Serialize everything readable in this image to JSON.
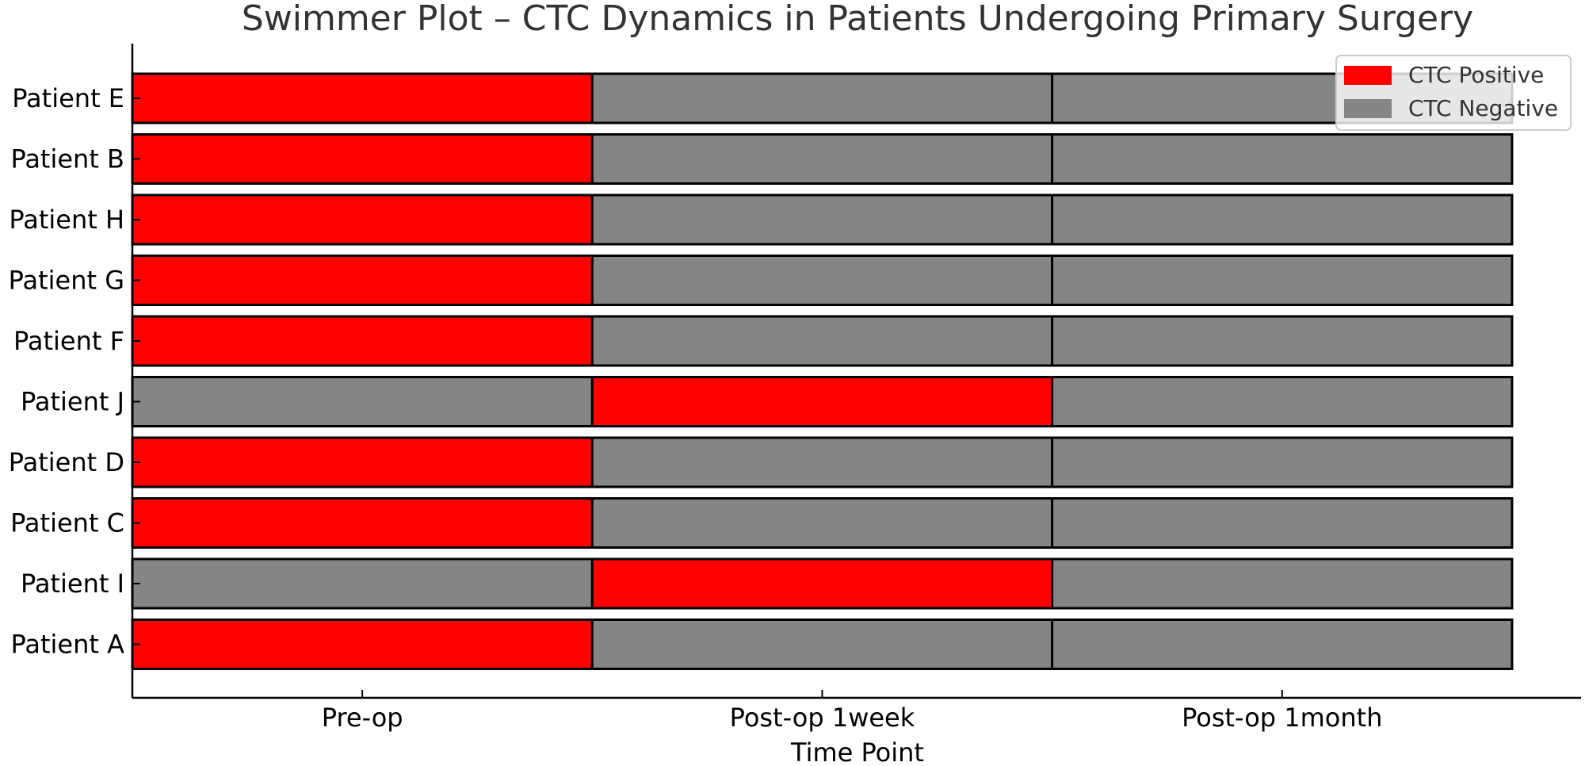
{
  "chart_data": {
    "type": "bar",
    "subtype": "swimmer",
    "title": "Swimmer Plot – CTC Dynamics in Patients Undergoing Primary Surgery",
    "xlabel": "Time Point",
    "ylabel": "",
    "x_categories": [
      "Pre-op",
      "Post-op 1week",
      "Post-op 1month"
    ],
    "xlim": [
      -0.5,
      2.65
    ],
    "patients": [
      {
        "name": "Patient E",
        "status": [
          "CTC Positive",
          "CTC Negative",
          "CTC Negative"
        ]
      },
      {
        "name": "Patient B",
        "status": [
          "CTC Positive",
          "CTC Negative",
          "CTC Negative"
        ]
      },
      {
        "name": "Patient H",
        "status": [
          "CTC Positive",
          "CTC Negative",
          "CTC Negative"
        ]
      },
      {
        "name": "Patient G",
        "status": [
          "CTC Positive",
          "CTC Negative",
          "CTC Negative"
        ]
      },
      {
        "name": "Patient F",
        "status": [
          "CTC Positive",
          "CTC Negative",
          "CTC Negative"
        ]
      },
      {
        "name": "Patient J",
        "status": [
          "CTC Negative",
          "CTC Positive",
          "CTC Negative"
        ]
      },
      {
        "name": "Patient D",
        "status": [
          "CTC Positive",
          "CTC Negative",
          "CTC Negative"
        ]
      },
      {
        "name": "Patient C",
        "status": [
          "CTC Positive",
          "CTC Negative",
          "CTC Negative"
        ]
      },
      {
        "name": "Patient I",
        "status": [
          "CTC Negative",
          "CTC Positive",
          "CTC Negative"
        ]
      },
      {
        "name": "Patient A",
        "status": [
          "CTC Positive",
          "CTC Negative",
          "CTC Negative"
        ]
      }
    ],
    "legend": [
      {
        "label": "CTC Positive",
        "color": "#ff0000"
      },
      {
        "label": "CTC Negative",
        "color": "#858585"
      }
    ],
    "legend_position": "top-right",
    "grid": false
  }
}
